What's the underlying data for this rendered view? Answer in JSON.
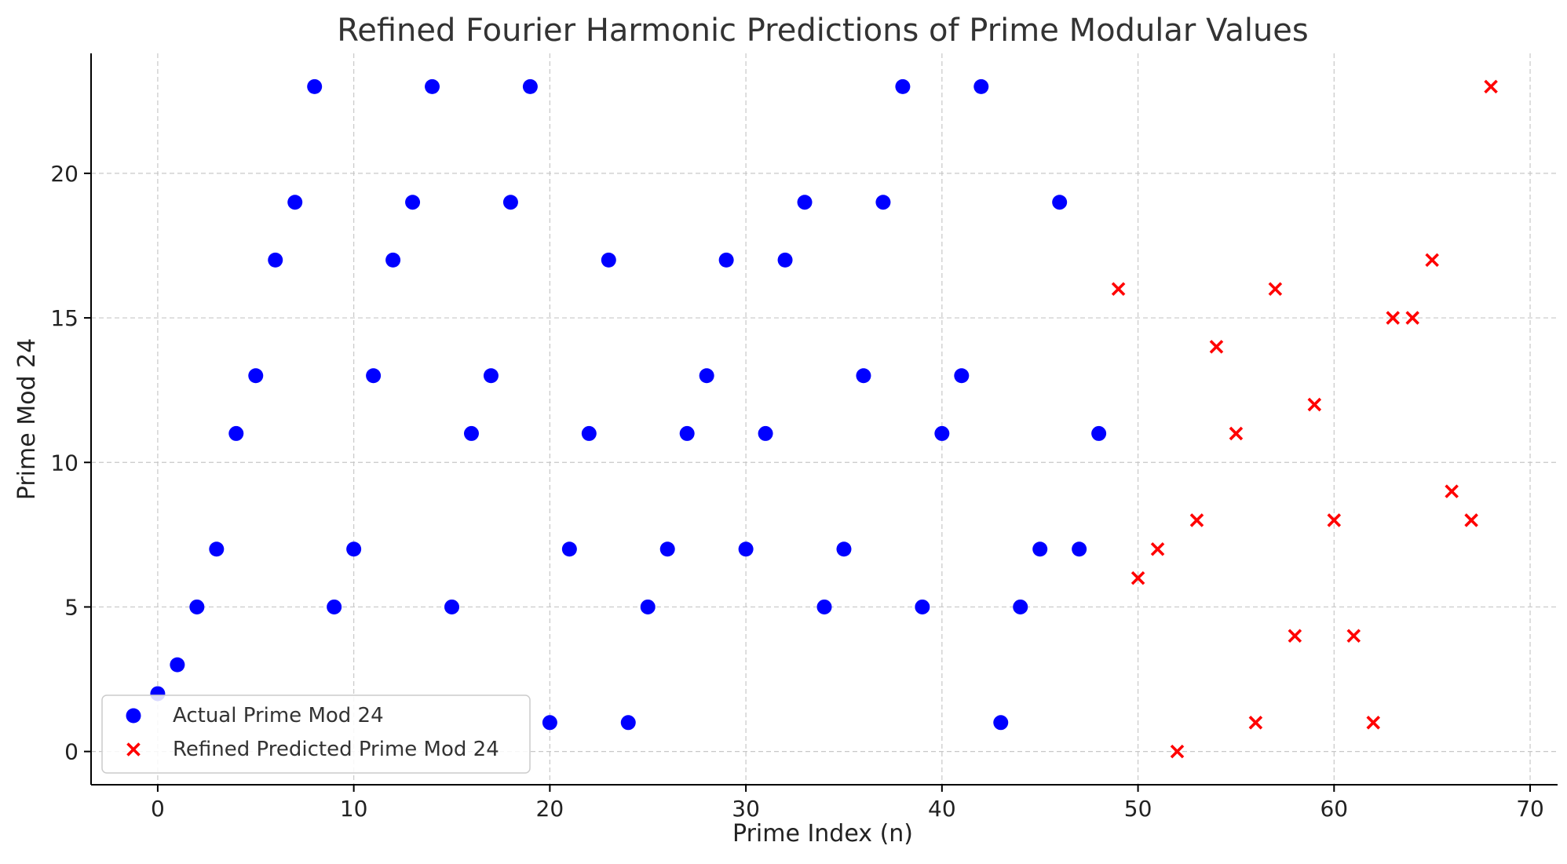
{
  "chart_data": {
    "type": "scatter",
    "title": "Refined Fourier Harmonic Predictions of Prime Modular Values",
    "xlabel": "Prime Index (n)",
    "ylabel": "Prime Mod 24",
    "xlim": [
      -3.4,
      71.4
    ],
    "ylim": [
      -1.15,
      24.15
    ],
    "xticks": [
      0,
      10,
      20,
      30,
      40,
      50,
      60,
      70
    ],
    "yticks": [
      0,
      5,
      10,
      15,
      20
    ],
    "grid": true,
    "legend_position": "lower-left",
    "series": [
      {
        "name": "Actual Prime Mod 24",
        "marker": "circle",
        "color": "#0000ff",
        "x": [
          0,
          1,
          2,
          3,
          4,
          5,
          6,
          7,
          8,
          9,
          10,
          11,
          12,
          13,
          14,
          15,
          16,
          17,
          18,
          19,
          20,
          21,
          22,
          23,
          24,
          25,
          26,
          27,
          28,
          29,
          30,
          31,
          32,
          33,
          34,
          35,
          36,
          37,
          38,
          39,
          40,
          41,
          42,
          43,
          44,
          45,
          46,
          47,
          48
        ],
        "y": [
          2,
          3,
          5,
          7,
          11,
          13,
          17,
          19,
          23,
          5,
          7,
          13,
          17,
          19,
          23,
          5,
          11,
          13,
          19,
          23,
          1,
          7,
          11,
          17,
          1,
          5,
          7,
          11,
          13,
          17,
          7,
          11,
          17,
          19,
          5,
          7,
          13,
          19,
          23,
          5,
          11,
          13,
          23,
          1,
          5,
          7,
          19,
          7,
          11
        ]
      },
      {
        "name": "Refined Predicted Prime Mod 24",
        "marker": "x",
        "color": "#ff0000",
        "x": [
          49,
          50,
          51,
          52,
          53,
          54,
          55,
          56,
          57,
          58,
          59,
          60,
          61,
          62,
          63,
          64,
          65,
          66,
          67,
          68
        ],
        "y": [
          16,
          6,
          7,
          0,
          8,
          14,
          11,
          1,
          16,
          4,
          12,
          8,
          4,
          1,
          15,
          15,
          17,
          9,
          8,
          23
        ]
      }
    ]
  }
}
